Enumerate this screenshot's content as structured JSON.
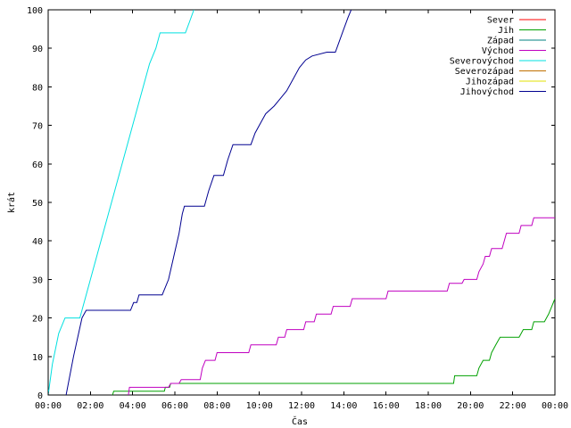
{
  "chart_data": {
    "type": "line",
    "title": "",
    "xlabel": "Čas",
    "ylabel": "krát",
    "xlim": [
      0,
      24
    ],
    "ylim": [
      0,
      100
    ],
    "x_ticks": [
      "00:00",
      "02:00",
      "04:00",
      "06:00",
      "08:00",
      "10:00",
      "12:00",
      "14:00",
      "16:00",
      "18:00",
      "20:00",
      "22:00",
      "00:00"
    ],
    "y_ticks": [
      "0",
      "10",
      "20",
      "30",
      "40",
      "50",
      "60",
      "70",
      "80",
      "90",
      "100"
    ],
    "grid": false,
    "legend_position": "top-right",
    "series": [
      {
        "name": "Sever",
        "color": "#ff0000",
        "points": []
      },
      {
        "name": "Jih",
        "color": "#00a000",
        "points": [
          [
            3.05,
            0
          ],
          [
            3.1,
            1
          ],
          [
            5.5,
            1
          ],
          [
            5.55,
            2
          ],
          [
            5.75,
            2
          ],
          [
            5.8,
            3
          ],
          [
            19.2,
            3
          ],
          [
            19.25,
            5
          ],
          [
            20.3,
            5
          ],
          [
            20.4,
            7
          ],
          [
            20.6,
            9
          ],
          [
            20.9,
            9
          ],
          [
            21.0,
            11
          ],
          [
            21.2,
            13
          ],
          [
            21.4,
            15
          ],
          [
            22.3,
            15
          ],
          [
            22.5,
            17
          ],
          [
            22.9,
            17
          ],
          [
            23.0,
            19
          ],
          [
            23.5,
            19
          ],
          [
            23.7,
            21
          ],
          [
            23.85,
            23
          ],
          [
            24.0,
            25
          ]
        ]
      },
      {
        "name": "Západ",
        "color": "#008080",
        "points": []
      },
      {
        "name": "Východ",
        "color": "#c000c0",
        "points": [
          [
            3.8,
            0
          ],
          [
            3.85,
            2
          ],
          [
            5.7,
            2
          ],
          [
            5.8,
            3
          ],
          [
            6.2,
            3
          ],
          [
            6.3,
            4
          ],
          [
            7.2,
            4
          ],
          [
            7.3,
            7
          ],
          [
            7.45,
            9
          ],
          [
            7.9,
            9
          ],
          [
            8.0,
            11
          ],
          [
            9.5,
            11
          ],
          [
            9.6,
            13
          ],
          [
            10.8,
            13
          ],
          [
            10.9,
            15
          ],
          [
            11.2,
            15
          ],
          [
            11.3,
            17
          ],
          [
            12.1,
            17
          ],
          [
            12.2,
            19
          ],
          [
            12.6,
            19
          ],
          [
            12.7,
            21
          ],
          [
            13.4,
            21
          ],
          [
            13.5,
            23
          ],
          [
            14.3,
            23
          ],
          [
            14.4,
            25
          ],
          [
            16.0,
            25
          ],
          [
            16.1,
            27
          ],
          [
            18.9,
            27
          ],
          [
            19.0,
            29
          ],
          [
            19.6,
            29
          ],
          [
            19.7,
            30
          ],
          [
            20.3,
            30
          ],
          [
            20.4,
            32
          ],
          [
            20.6,
            34
          ],
          [
            20.7,
            36
          ],
          [
            20.9,
            36
          ],
          [
            21.0,
            38
          ],
          [
            21.5,
            38
          ],
          [
            21.6,
            40
          ],
          [
            21.7,
            42
          ],
          [
            22.3,
            42
          ],
          [
            22.4,
            44
          ],
          [
            22.9,
            44
          ],
          [
            23.0,
            46
          ],
          [
            24.0,
            46
          ]
        ]
      },
      {
        "name": "Severovýchod",
        "color": "#00e0e0",
        "points": [
          [
            0.0,
            0
          ],
          [
            0.2,
            8
          ],
          [
            0.5,
            16
          ],
          [
            0.8,
            20
          ],
          [
            1.5,
            20
          ],
          [
            1.8,
            26
          ],
          [
            2.1,
            32
          ],
          [
            2.4,
            38
          ],
          [
            2.7,
            44
          ],
          [
            3.0,
            50
          ],
          [
            3.3,
            56
          ],
          [
            3.6,
            62
          ],
          [
            3.9,
            68
          ],
          [
            4.2,
            74
          ],
          [
            4.5,
            80
          ],
          [
            4.8,
            86
          ],
          [
            5.1,
            90
          ],
          [
            5.3,
            94
          ],
          [
            6.5,
            94
          ],
          [
            6.7,
            97
          ],
          [
            6.9,
            100
          ]
        ]
      },
      {
        "name": "Severozápad",
        "color": "#c07000",
        "points": []
      },
      {
        "name": "Jihozápad",
        "color": "#e0e000",
        "points": []
      },
      {
        "name": "Jihovýchod",
        "color": "#000090",
        "points": [
          [
            0.85,
            0
          ],
          [
            1.2,
            10
          ],
          [
            1.6,
            20
          ],
          [
            1.8,
            22
          ],
          [
            3.9,
            22
          ],
          [
            4.05,
            24
          ],
          [
            4.2,
            24
          ],
          [
            4.3,
            26
          ],
          [
            5.4,
            26
          ],
          [
            5.7,
            30
          ],
          [
            5.95,
            36
          ],
          [
            6.2,
            42
          ],
          [
            6.35,
            47
          ],
          [
            6.45,
            49
          ],
          [
            7.4,
            49
          ],
          [
            7.6,
            53
          ],
          [
            7.85,
            57
          ],
          [
            8.3,
            57
          ],
          [
            8.5,
            61
          ],
          [
            8.75,
            65
          ],
          [
            9.6,
            65
          ],
          [
            9.8,
            68
          ],
          [
            10.1,
            71
          ],
          [
            10.3,
            73
          ],
          [
            10.7,
            75
          ],
          [
            11.0,
            77
          ],
          [
            11.3,
            79
          ],
          [
            11.6,
            82
          ],
          [
            11.9,
            85
          ],
          [
            12.2,
            87
          ],
          [
            12.5,
            88
          ],
          [
            13.2,
            89
          ],
          [
            13.6,
            89
          ],
          [
            13.8,
            92
          ],
          [
            14.0,
            95
          ],
          [
            14.2,
            98
          ],
          [
            14.35,
            100
          ]
        ]
      }
    ]
  }
}
